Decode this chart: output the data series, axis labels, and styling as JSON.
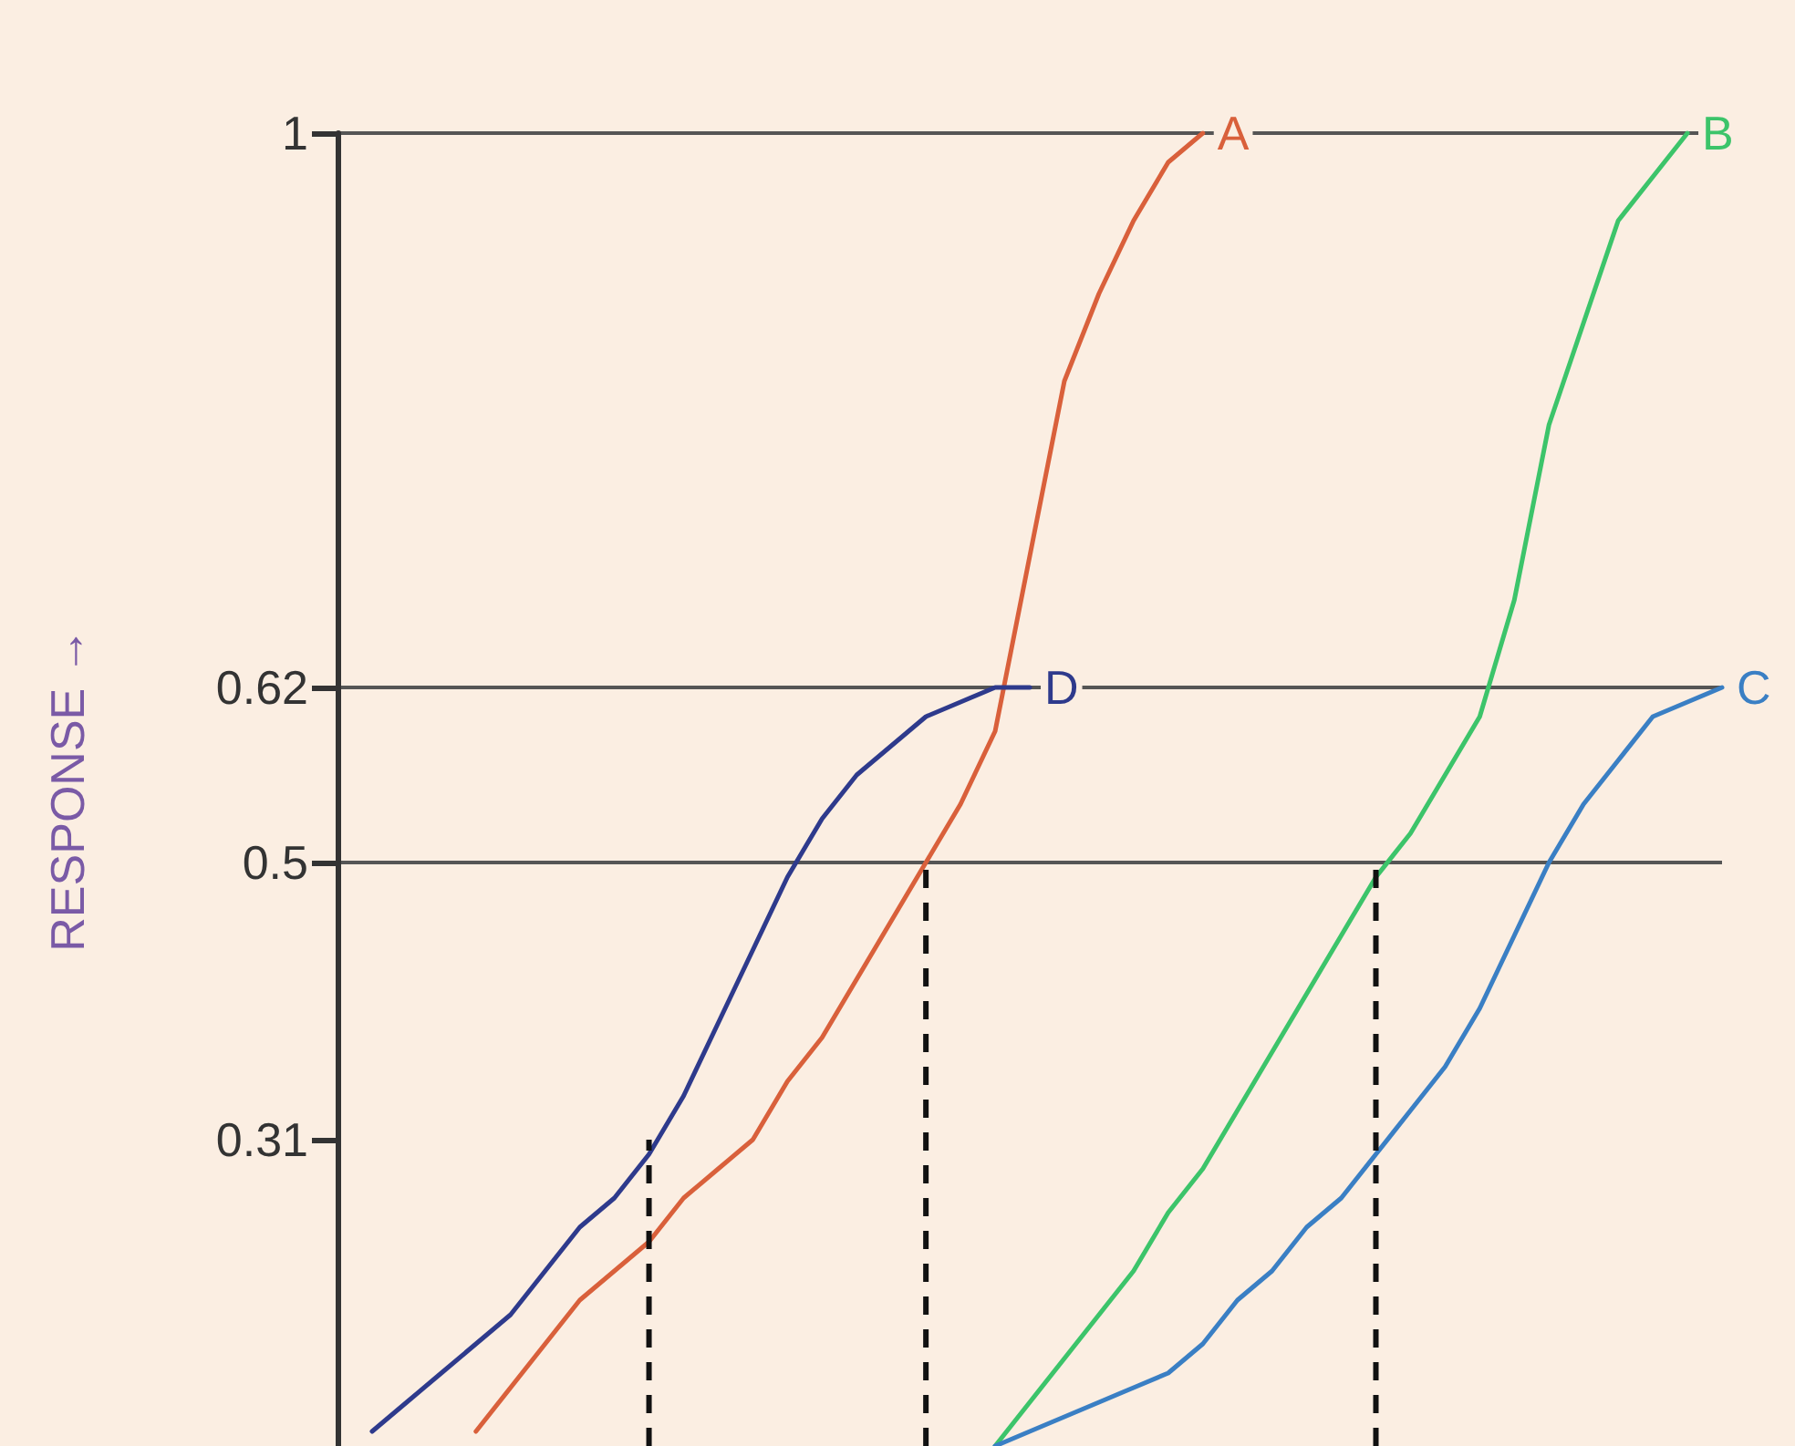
{
  "chart_data": {
    "type": "line",
    "ylabel": "RESPONSE →",
    "categories": [
      null,
      null,
      null,
      null,
      null,
      null,
      null,
      null,
      null,
      null,
      null,
      null,
      null,
      null,
      null,
      null,
      null,
      null,
      null,
      null,
      null,
      null,
      null,
      null,
      null,
      null,
      null,
      null,
      null,
      null,
      null,
      null,
      null,
      null,
      null,
      null,
      null,
      null,
      null,
      null,
      null
    ],
    "ylim": [
      0.1,
      1
    ],
    "yticks": [
      0.31,
      0.5,
      0.62,
      1
    ],
    "grid": "y",
    "tick_labels": "y",
    "marker": "none",
    "line_style": "solid",
    "legend": false,
    "series": [
      {
        "name": "A",
        "color": "#d9603b",
        "values": [
          null,
          null,
          null,
          null,
          0.11,
          0.14,
          0.17,
          0.2,
          0.22,
          0.24,
          0.27,
          0.29,
          0.31,
          0.35,
          0.38,
          0.42,
          0.46,
          0.5,
          0.54,
          0.59,
          0.71,
          0.83,
          0.89,
          0.94,
          0.98,
          1,
          null,
          null,
          null,
          null,
          null,
          null,
          null,
          null,
          null,
          null,
          null,
          null,
          null,
          null,
          null
        ]
      },
      {
        "name": "B",
        "color": "#3cc46a",
        "values": [
          null,
          null,
          null,
          null,
          null,
          null,
          null,
          null,
          null,
          null,
          null,
          null,
          null,
          null,
          null,
          null,
          null,
          null,
          null,
          0.1,
          0.13,
          0.16,
          0.19,
          0.22,
          0.26,
          0.29,
          0.33,
          0.37,
          0.41,
          0.45,
          0.49,
          0.52,
          0.56,
          0.6,
          0.68,
          0.8,
          0.87,
          0.94,
          0.97,
          1,
          null
        ]
      },
      {
        "name": "C",
        "color": "#3a7fc4",
        "values": [
          null,
          null,
          null,
          null,
          null,
          null,
          null,
          null,
          null,
          null,
          null,
          null,
          null,
          null,
          null,
          null,
          null,
          null,
          null,
          0.1,
          0.11,
          0.12,
          0.13,
          0.14,
          0.15,
          0.17,
          0.2,
          0.22,
          0.25,
          0.27,
          0.3,
          0.33,
          0.36,
          0.4,
          0.45,
          0.5,
          0.54,
          0.57,
          0.6,
          0.61,
          0.62
        ]
      },
      {
        "name": "D",
        "color": "#2e3a8c",
        "values": [
          null,
          0.11,
          0.13,
          0.15,
          0.17,
          0.19,
          0.22,
          0.25,
          0.27,
          0.3,
          0.34,
          0.39,
          0.44,
          0.49,
          0.53,
          0.56,
          0.58,
          0.6,
          0.61,
          0.62,
          0.62,
          null,
          null,
          null,
          null,
          null,
          null,
          null,
          null,
          null,
          null,
          null,
          null,
          null,
          null,
          null,
          null,
          null,
          null,
          null,
          null
        ]
      }
    ]
  }
}
